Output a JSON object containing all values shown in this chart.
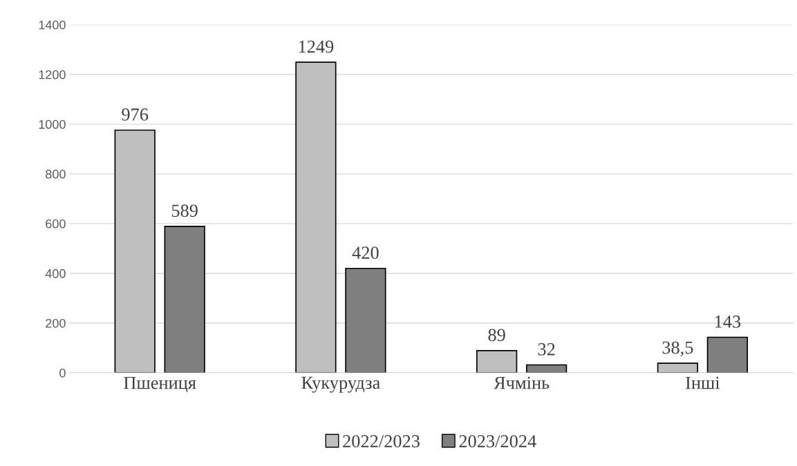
{
  "chart_data": {
    "type": "bar",
    "categories": [
      "Пшениця",
      "Кукурудза",
      "Ячмінь",
      "Інші"
    ],
    "series": [
      {
        "name": "2022/2023",
        "color": "#bfbfbf",
        "values": [
          976,
          1249,
          89,
          38.5
        ],
        "value_labels": [
          "976",
          "1249",
          "89",
          "38,5"
        ]
      },
      {
        "name": "2023/2024",
        "color": "#7f7f7f",
        "values": [
          589,
          420,
          32,
          143
        ],
        "value_labels": [
          "589",
          "420",
          "32",
          "143"
        ]
      }
    ],
    "ylim": [
      0,
      1400
    ],
    "yticks": [
      0,
      200,
      400,
      600,
      800,
      1000,
      1200,
      1400
    ],
    "grid": "y",
    "legend": "bottom"
  }
}
